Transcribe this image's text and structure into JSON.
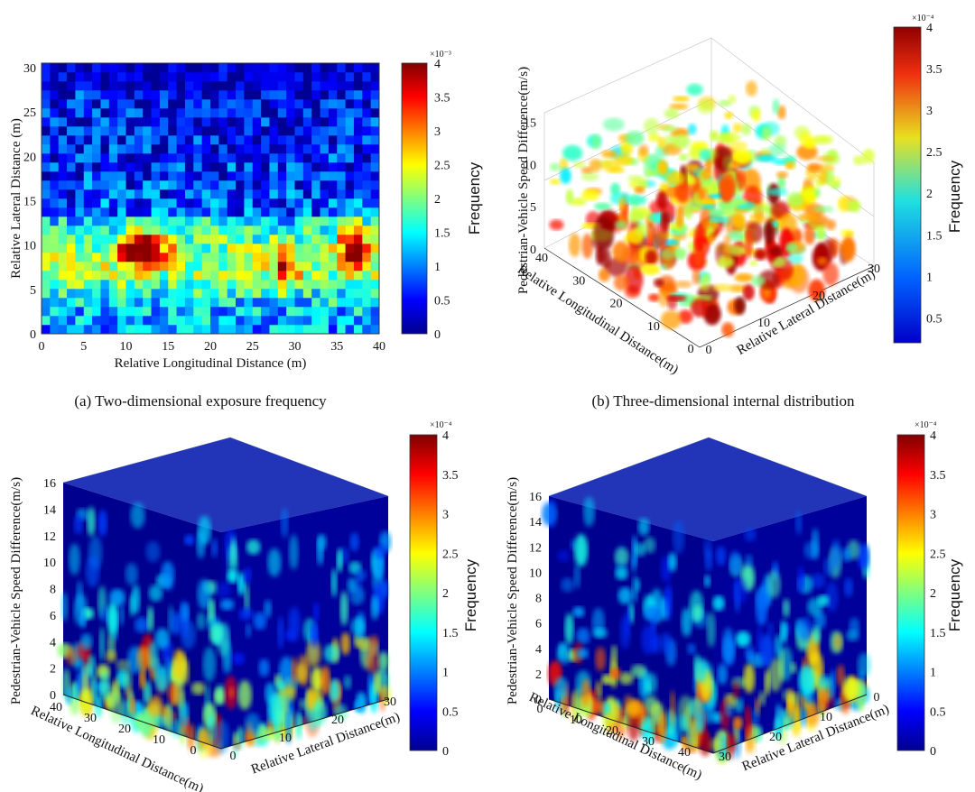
{
  "colors": {
    "colormap": "jet",
    "background": "#ffffff"
  },
  "captions": {
    "a": "(a) Two-dimensional exposure frequency",
    "b": "(b) Three-dimensional internal distribution"
  },
  "colorbar_label": "Frequency",
  "chart_data": [
    {
      "id": "a",
      "type": "heatmap",
      "title": "",
      "xlabel": "Relative Longitudinal Distance (m)",
      "ylabel": "Relative Lateral Distance (m)",
      "xlim": [
        0,
        40
      ],
      "ylim": [
        0,
        30.5
      ],
      "xticks": [
        "0",
        "5",
        "10",
        "15",
        "20",
        "25",
        "30",
        "35",
        "40"
      ],
      "yticks": [
        "0",
        "5",
        "10",
        "15",
        "20",
        "25",
        "30"
      ],
      "colorbar": {
        "label": "Frequency",
        "exponent": "×10⁻³",
        "range": [
          0,
          4
        ],
        "ticks": [
          "0",
          "0.5",
          "1",
          "1.5",
          "2",
          "2.5",
          "3",
          "3.5",
          "4"
        ]
      },
      "description_values": "Cell frequencies mostly 0–1×10⁻³ above 13 m lateral; band of 1.5–4×10⁻³ between 3 and 13 m lateral; hotspots near x≈11–13, y≈8–11 and x≈35–38, y≈7–12 reaching ≈4×10⁻³"
    },
    {
      "id": "b",
      "type": "scatter",
      "title": "",
      "xlabel": "Relative Longitudinal Distance(m)",
      "ylabel": "Relative Lateral Distance(m)",
      "zlabel": "Pedestrian-Vehicle Speed Difference(m/s)",
      "xticks": [
        "0",
        "10",
        "20",
        "30",
        "40"
      ],
      "yticks": [
        "0",
        "10",
        "20",
        "30"
      ],
      "zticks": [
        "0",
        "5",
        "10",
        "15"
      ],
      "colorbar": {
        "label": "Frequency",
        "exponent": "×10⁻⁴",
        "range": [
          0.2,
          4
        ],
        "ticks": [
          "0.5",
          "1",
          "1.5",
          "2",
          "2.5",
          "3",
          "3.5",
          "4"
        ]
      }
    },
    {
      "id": "c",
      "type": "heatmap",
      "title": "",
      "xlabel": "Relative Longitudinal Distance(m)",
      "ylabel": "Relative Lateral Distance(m)",
      "zlabel": "Pedestrian-Vehicle Speed Difference(m/s)",
      "xticks": [
        "0",
        "10",
        "20",
        "30",
        "40"
      ],
      "yticks": [
        "0",
        "10",
        "20",
        "30"
      ],
      "zticks": [
        "0",
        "2",
        "4",
        "6",
        "8",
        "10",
        "12",
        "14",
        "16"
      ],
      "colorbar": {
        "label": "Frequency",
        "exponent": "×10⁻⁴",
        "range": [
          0,
          4
        ],
        "ticks": [
          "0",
          "0.5",
          "1",
          "1.5",
          "2",
          "2.5",
          "3",
          "3.5",
          "4"
        ]
      }
    },
    {
      "id": "d",
      "type": "heatmap",
      "title": "",
      "xlabel": "Relative Longitudinal Distance(m)",
      "ylabel": "Relative Lateral Distance(m)",
      "zlabel": "Pedestrian-Vehicle Speed Difference(m/s)",
      "xticks": [
        "0",
        "10",
        "20",
        "30",
        "40"
      ],
      "yticks": [
        "0",
        "10",
        "20",
        "30"
      ],
      "zticks": [
        "0",
        "2",
        "4",
        "6",
        "8",
        "10",
        "12",
        "14",
        "16"
      ],
      "colorbar": {
        "label": "Frequency",
        "exponent": "×10⁻⁴",
        "range": [
          0,
          4
        ],
        "ticks": [
          "0",
          "0.5",
          "1",
          "1.5",
          "2",
          "2.5",
          "3",
          "3.5",
          "4"
        ]
      }
    }
  ]
}
